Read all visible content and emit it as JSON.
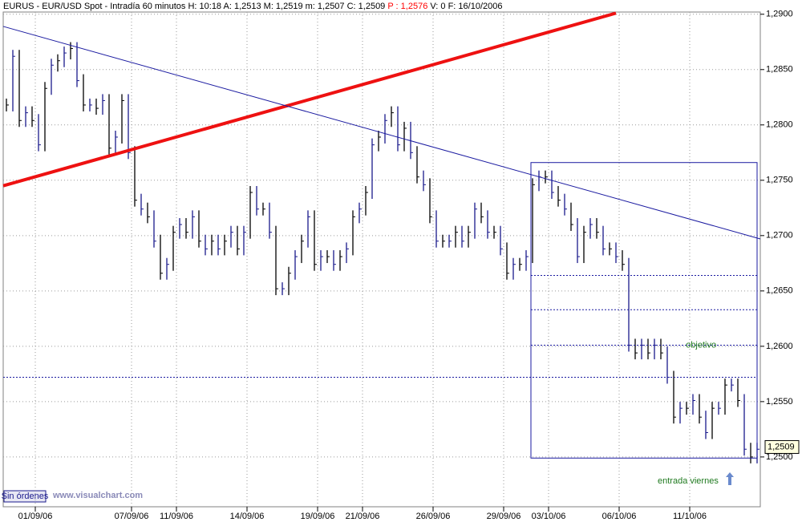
{
  "chart_data": {
    "type": "range_bar",
    "header": [
      {
        "text": "EURUS - EUR/USD Spot - Intradía 60 minutos  H: 10:18  A: 1,2513  M: 1,2519  m: 1,2507  C: 1,2509  ",
        "color": "#000000"
      },
      {
        "text": "P : 1,2576",
        "color": "#ff0000"
      },
      {
        "text": "  V: 0  F: 16/10/2006",
        "color": "#000000"
      }
    ],
    "values": [
      1.2818,
      1.2862,
      1.2804,
      1.2811,
      1.2804,
      1.2782,
      1.2833,
      1.2854,
      1.2858,
      1.2865,
      1.2869,
      1.284,
      1.2818,
      1.2818,
      1.2815,
      1.2822,
      1.2779,
      1.2789,
      1.2822,
      1.2775,
      1.2732,
      1.2724,
      1.2717,
      1.2695,
      1.2666,
      1.2674,
      1.2703,
      1.271,
      1.2703,
      1.2717,
      1.2695,
      1.2688,
      1.2695,
      1.2688,
      1.2695,
      1.2703,
      1.2688,
      1.2703,
      1.2739,
      1.2724,
      1.2724,
      1.2703,
      1.2652,
      1.2652,
      1.2666,
      1.2681,
      1.2695,
      1.2717,
      1.2674,
      1.2681,
      1.2681,
      1.2674,
      1.2681,
      1.2688,
      1.2717,
      1.2724,
      1.2739,
      1.2782,
      1.2789,
      1.2804,
      1.2811,
      1.2782,
      1.2797,
      1.2775,
      1.2753,
      1.2746,
      1.2717,
      1.2695,
      1.2695,
      1.2695,
      1.2703,
      1.2695,
      1.2703,
      1.2724,
      1.2717,
      1.2703,
      1.2703,
      1.2688,
      1.2666,
      1.2674,
      1.2674,
      1.2681,
      1.2746,
      1.2753,
      1.2753,
      1.2739,
      1.2732,
      1.2724,
      1.271,
      1.2681,
      1.2703,
      1.271,
      1.2703,
      1.2688,
      1.2688,
      1.2681,
      1.2674,
      1.2601,
      1.2594,
      1.2601,
      1.2594,
      1.2601,
      1.2594,
      1.2572,
      1.2536,
      1.2544,
      1.2544,
      1.2551,
      1.2536,
      1.2522,
      1.2544,
      1.2544,
      1.2565,
      1.2565,
      1.2551,
      1.2507,
      1.25,
      1.2507
    ],
    "colors": [
      "#000000",
      "#1a1a8c"
    ],
    "xlim": [
      0,
      118
    ],
    "xticks": [
      {
        "value": 5,
        "label": "01/09/06"
      },
      {
        "value": 20,
        "label": "07/09/06"
      },
      {
        "value": 27,
        "label": "11/09/06"
      },
      {
        "value": 38,
        "label": "14/09/06"
      },
      {
        "value": 49,
        "label": "19/09/06"
      },
      {
        "value": 56,
        "label": "21/09/06"
      },
      {
        "value": 67,
        "label": "26/09/06"
      },
      {
        "value": 78,
        "label": "29/09/06"
      },
      {
        "value": 85,
        "label": "03/10/06"
      },
      {
        "value": 96,
        "label": "06/10/06"
      },
      {
        "value": 107,
        "label": "11/10/06"
      }
    ],
    "ylim": [
      1.2455,
      1.2902
    ],
    "yticks": [
      {
        "value": 1.25,
        "label": "1,2500"
      },
      {
        "value": 1.255,
        "label": "1,2550"
      },
      {
        "value": 1.26,
        "label": "1,2600"
      },
      {
        "value": 1.265,
        "label": "1,2650"
      },
      {
        "value": 1.27,
        "label": "1,2700"
      },
      {
        "value": 1.275,
        "label": "1,2750"
      },
      {
        "value": 1.28,
        "label": "1,2800"
      },
      {
        "value": 1.285,
        "label": "1,2850"
      },
      {
        "value": 1.29,
        "label": "1,2900"
      }
    ],
    "grid": true,
    "last_price": {
      "value": 1.2509,
      "label": "1,2509"
    },
    "trendlines": [
      {
        "x": [
          0,
          95.5
        ],
        "y": [
          1.2745,
          1.2901
        ],
        "color": "#ee1111",
        "width": 4
      },
      {
        "x": [
          0,
          118
        ],
        "y": [
          1.2889,
          1.2697
        ],
        "color": "#1a1aa0",
        "width": 1
      }
    ],
    "box": {
      "x": [
        82.25,
        117.5
      ],
      "y": [
        1.2499,
        1.2766
      ],
      "color": "#1a1aa0"
    },
    "levels": [
      {
        "x": [
          82.25,
          117.5
        ],
        "y": 1.2664
      },
      {
        "x": [
          82.25,
          117.5
        ],
        "y": 1.2633
      },
      {
        "x": [
          82.25,
          117.5
        ],
        "y": 1.2601
      },
      {
        "x": [
          0,
          117.5
        ],
        "y": 1.2572
      }
    ],
    "annotations": [
      {
        "text": "objetivo",
        "x": 106.4,
        "y": 1.2601,
        "color": "#1f7a1f"
      },
      {
        "text": "entrada viernes",
        "x": 102,
        "y": 1.2478,
        "color": "#1f7a1f"
      }
    ],
    "status": "Sin órdenes",
    "watermark": "www.visualchart.com"
  }
}
